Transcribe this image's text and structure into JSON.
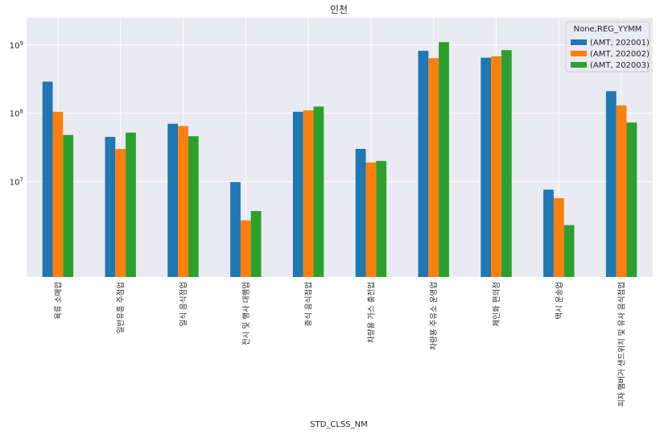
{
  "chart_data": {
    "type": "bar",
    "title": "인천",
    "xlabel": "STD_CLSS_NM",
    "ylabel": "",
    "yscale": "log",
    "ylim": [
      400000,
      2500000000
    ],
    "yticks": [
      {
        "value": 10000000,
        "base": "10",
        "exp": "7"
      },
      {
        "value": 100000000,
        "base": "10",
        "exp": "8"
      },
      {
        "value": 1000000000,
        "base": "10",
        "exp": "9"
      }
    ],
    "categories": [
      "육류 소매업",
      "일반유흥 주점업",
      "일식 음식점업",
      "전시 및 행사 대행업",
      "중식 음식점업",
      "차량용 가스 충전업",
      "차량용 주유소 운영업",
      "체인화 편의점",
      "택시 운송업",
      "피자 햄버거 샌드위치 및 유사 음식점업"
    ],
    "legend": {
      "title": "None,REG_YYMM",
      "position": "upper right"
    },
    "series": [
      {
        "name": "(AMT, 202001)",
        "color": "#1f77b4",
        "values": [
          290000000,
          45000000,
          70000000,
          9800000,
          105000000,
          30000000,
          820000000,
          650000000,
          7600000,
          210000000
        ]
      },
      {
        "name": "(AMT, 202002)",
        "color": "#ff7f0e",
        "values": [
          105000000,
          30000000,
          65000000,
          2700000,
          110000000,
          19000000,
          640000000,
          680000000,
          5700000,
          130000000
        ]
      },
      {
        "name": "(AMT, 202003)",
        "color": "#2ca02c",
        "values": [
          48000000,
          52000000,
          46000000,
          3700000,
          125000000,
          20000000,
          1100000000,
          840000000,
          2300000,
          73000000
        ]
      }
    ]
  }
}
